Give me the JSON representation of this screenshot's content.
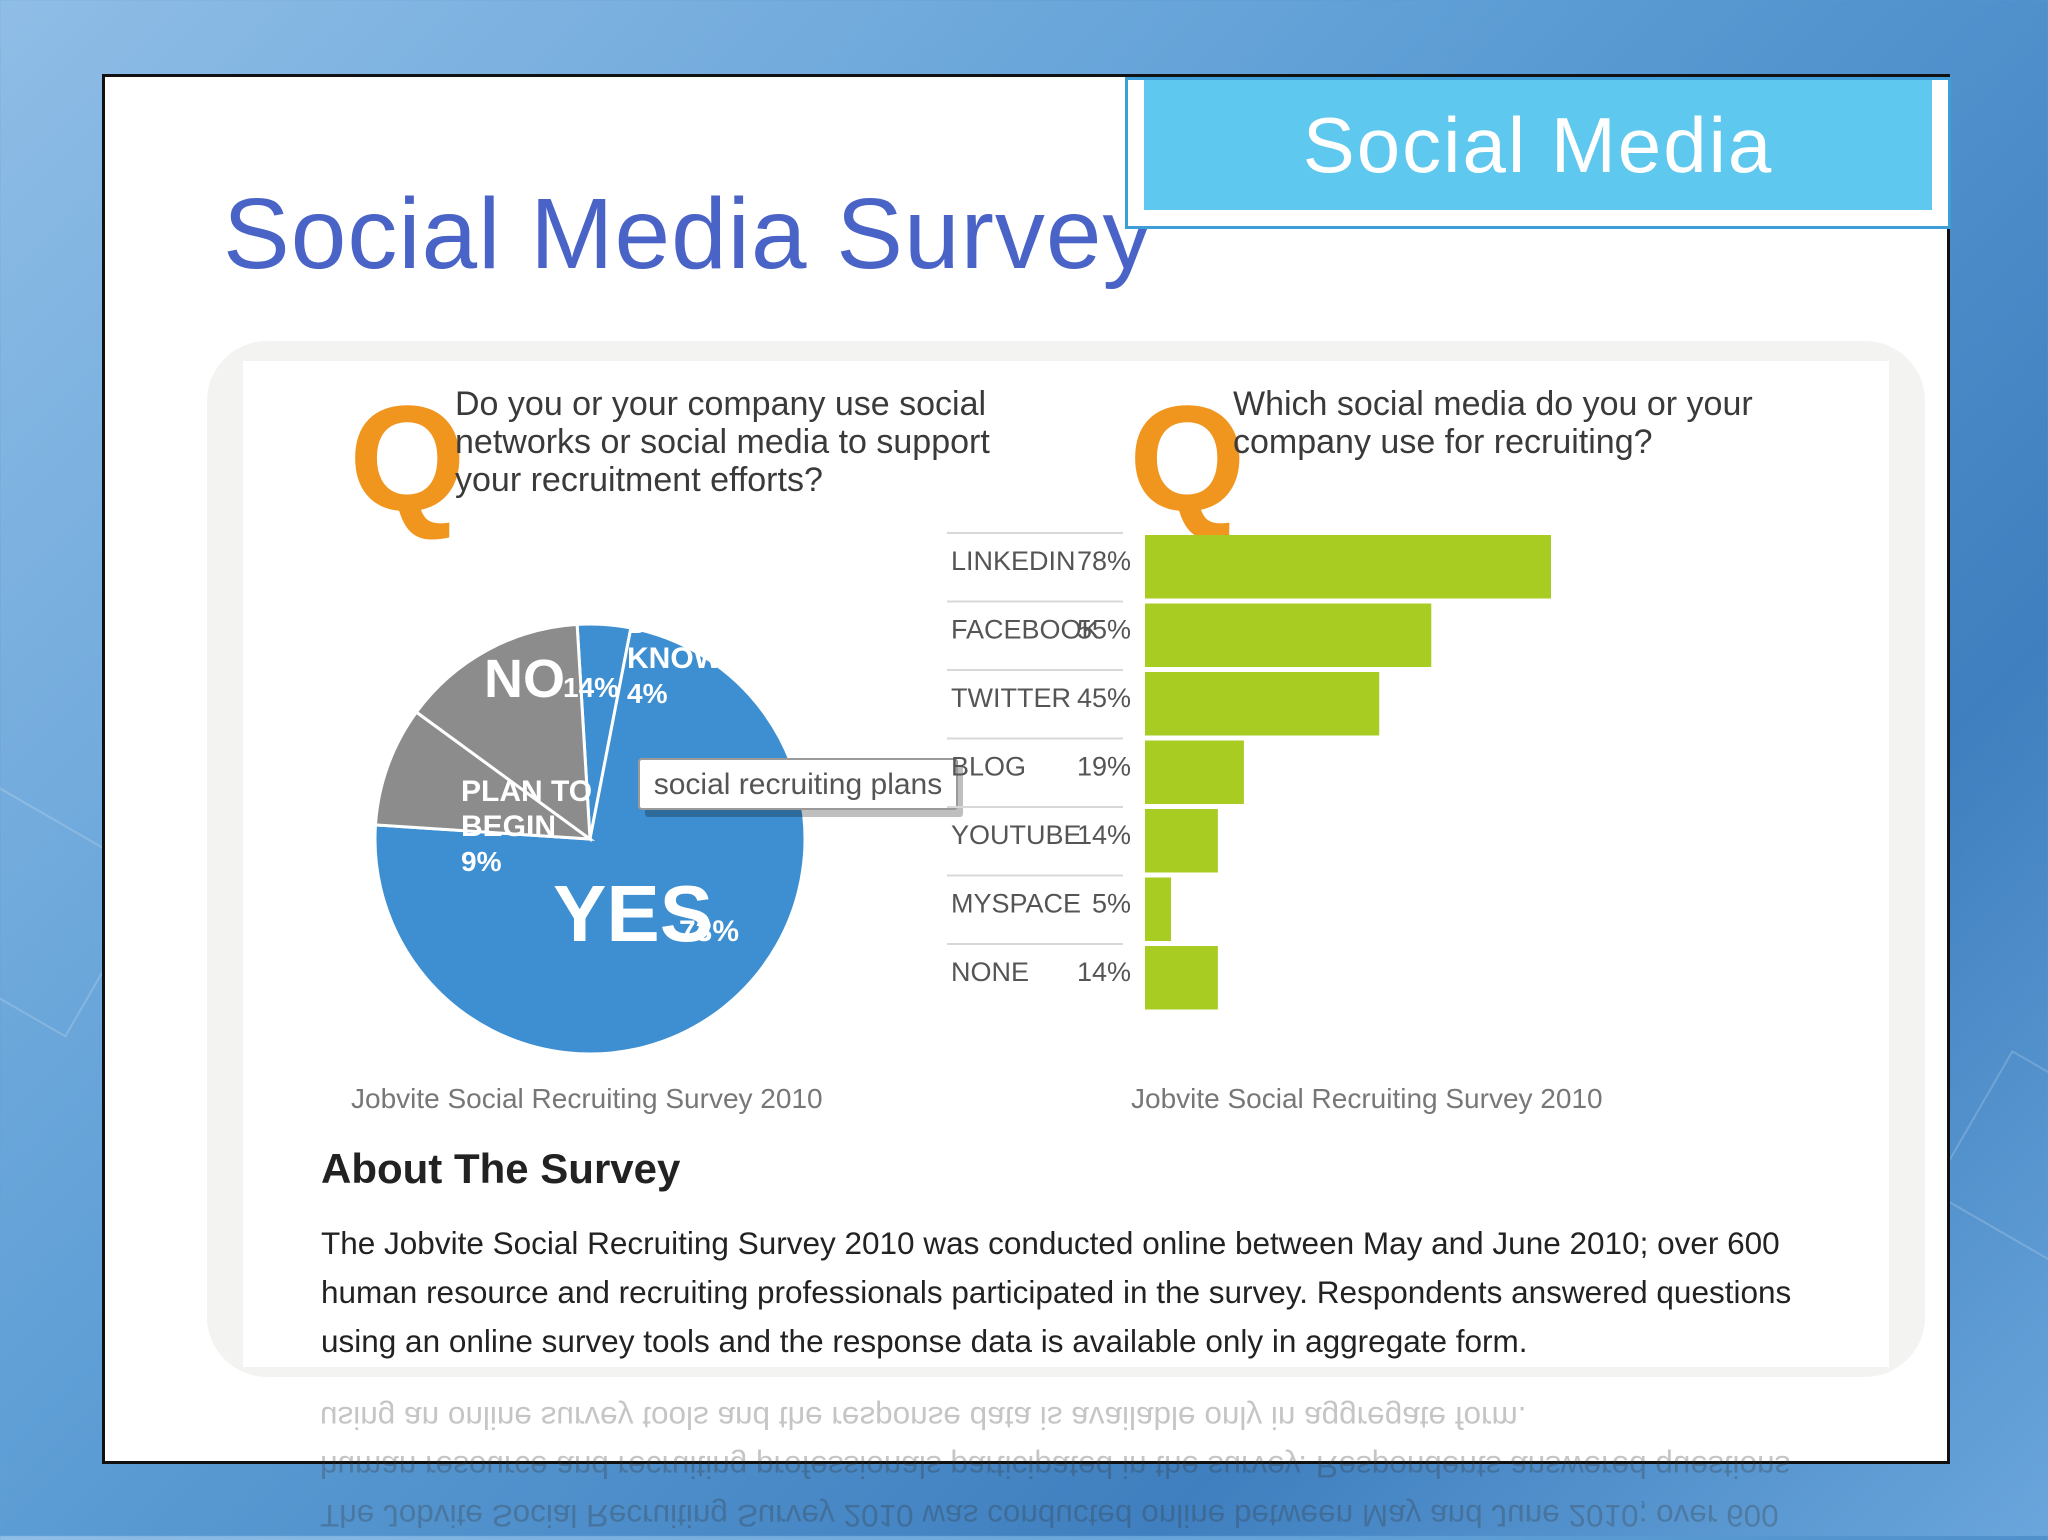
{
  "header": {
    "tab_title": "Social Media"
  },
  "slide": {
    "title": "Social Media Survey"
  },
  "colors": {
    "pie_blue": "#3d8fd1",
    "pie_gray": "#8c8c8c",
    "bar_green": "#a9cc23",
    "q_orange": "#f0951e",
    "title_blue": "#4a63c6"
  },
  "chart_data": [
    {
      "type": "pie",
      "question_mark": "Q",
      "question": "Do you or your company use social networks or social media to support your recruitment efforts?",
      "slices": [
        {
          "label": "YES",
          "value": 73,
          "value_label": "73%"
        },
        {
          "label": "PLAN TO BEGIN",
          "value": 9,
          "value_label": "9%"
        },
        {
          "label": "NO",
          "value": 14,
          "value_label": "14%"
        },
        {
          "label": "DON'T KNOW",
          "value": 4,
          "value_label": "4%"
        }
      ],
      "callout": "social recruiting plans",
      "source": "Jobvite Social Recruiting Survey 2010"
    },
    {
      "type": "bar",
      "orientation": "horizontal",
      "question_mark": "Q",
      "question": "Which social media do you or your company use for recruiting?",
      "categories": [
        "LINKEDIN",
        "FACEBOOK",
        "TWITTER",
        "BLOG",
        "YOUTUBE",
        "MYSPACE",
        "NONE"
      ],
      "values": [
        78,
        55,
        45,
        19,
        14,
        5,
        14
      ],
      "value_labels": [
        "78%",
        "55%",
        "45%",
        "19%",
        "14%",
        "5%",
        "14%"
      ],
      "source": "Jobvite Social Recruiting Survey 2010"
    }
  ],
  "about": {
    "title": "About The Survey",
    "body": "The Jobvite Social Recruiting Survey 2010 was conducted online between May and June 2010; over 600 human resource and recruiting professionals participated in the survey. Respondents answered questions using an online survey tools and the response data is available only in aggregate form."
  }
}
